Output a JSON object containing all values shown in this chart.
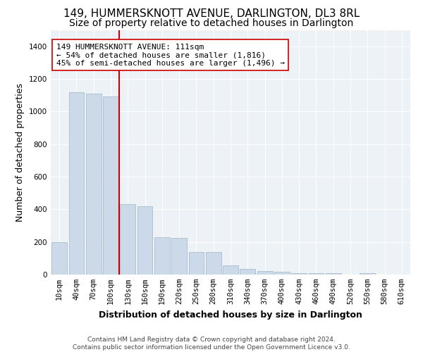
{
  "title_line1": "149, HUMMERSKNOTT AVENUE, DARLINGTON, DL3 8RL",
  "title_line2": "Size of property relative to detached houses in Darlington",
  "xlabel": "Distribution of detached houses by size in Darlington",
  "ylabel": "Number of detached properties",
  "footer_line1": "Contains HM Land Registry data © Crown copyright and database right 2024.",
  "footer_line2": "Contains public sector information licensed under the Open Government Licence v3.0.",
  "annotation_line1": "149 HUMMERSKNOTT AVENUE: 111sqm",
  "annotation_line2": "← 54% of detached houses are smaller (1,816)",
  "annotation_line3": "45% of semi-detached houses are larger (1,496) →",
  "bar_color": "#ccd9e8",
  "bar_edge_color": "#aabccc",
  "red_line_color": "#cc0000",
  "categories": [
    "10sqm",
    "40sqm",
    "70sqm",
    "100sqm",
    "130sqm",
    "160sqm",
    "190sqm",
    "220sqm",
    "250sqm",
    "280sqm",
    "310sqm",
    "340sqm",
    "370sqm",
    "400sqm",
    "430sqm",
    "460sqm",
    "490sqm",
    "520sqm",
    "550sqm",
    "580sqm",
    "610sqm"
  ],
  "values": [
    200,
    1120,
    1110,
    1090,
    430,
    420,
    230,
    225,
    140,
    140,
    55,
    35,
    20,
    18,
    10,
    10,
    8,
    0,
    8,
    0,
    0
  ],
  "red_line_x": 3.5,
  "ylim": [
    0,
    1500
  ],
  "yticks": [
    0,
    200,
    400,
    600,
    800,
    1000,
    1200,
    1400
  ],
  "background_color": "#edf2f7",
  "grid_color": "#ffffff",
  "title_fontsize": 11,
  "subtitle_fontsize": 10,
  "axis_label_fontsize": 9,
  "tick_fontsize": 7.5,
  "annotation_fontsize": 8,
  "footer_fontsize": 6.5
}
